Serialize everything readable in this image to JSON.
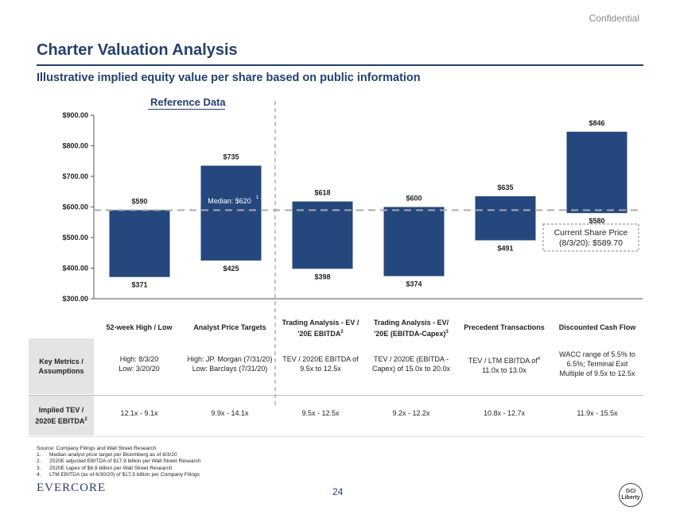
{
  "header": {
    "confidential": "Confidential",
    "title": "Charter Valuation Analysis",
    "subtitle": "Illustrative implied equity value per share based on public information",
    "reference_label": "Reference Data"
  },
  "chart_data": {
    "type": "floating_bar",
    "ylim": [
      300,
      900
    ],
    "yticks": [
      "$900.00",
      "$800.00",
      "$700.00",
      "$600.00",
      "$500.00",
      "$400.00",
      "$300.00"
    ],
    "ytick_values": [
      900,
      800,
      700,
      600,
      500,
      400,
      300
    ],
    "categories": [
      "52-week High / Low",
      "Analyst Price Targets",
      "Trading Analysis - EV / '20E EBITDA",
      "Trading Analysis - EV/ '20E (EBITDA-Capex)",
      "Precedent Transactions",
      "Discounted Cash Flow"
    ],
    "bars": [
      {
        "low": 371,
        "high": 590,
        "low_label": "$371",
        "high_label": "$590"
      },
      {
        "low": 425,
        "high": 735,
        "low_label": "$425",
        "high_label": "$735"
      },
      {
        "low": 398,
        "high": 618,
        "low_label": "$398",
        "high_label": "$618"
      },
      {
        "low": 374,
        "high": 600,
        "low_label": "$374",
        "high_label": "$600"
      },
      {
        "low": 491,
        "high": 635,
        "low_label": "$491",
        "high_label": "$635"
      },
      {
        "low": 580,
        "high": 846,
        "low_label": "$580",
        "high_label": "$846"
      }
    ],
    "median": {
      "value": 620,
      "label": "Median: $620",
      "footnote": "1",
      "bar_index": 1
    },
    "current_price": {
      "value": 589.7,
      "label_line1": "Current Share Price",
      "label_line2": "(8/3/20): $589.70"
    },
    "colors": {
      "bar": "#24477e",
      "reference_line": "#aaaaaa",
      "axis": "#555555"
    }
  },
  "table": {
    "columns": [
      {
        "title": "52-week High / Low",
        "sup": ""
      },
      {
        "title": "Analyst Price Targets",
        "sup": ""
      },
      {
        "title": "Trading Analysis - EV /",
        "title2": "'20E EBITDA",
        "sup": "2"
      },
      {
        "title": "Trading Analysis - EV/",
        "title2": "'20E (EBITDA-Capex)",
        "sup": "3"
      },
      {
        "title": "Precedent Transactions",
        "sup": ""
      },
      {
        "title": "Discounted Cash Flow",
        "sup": ""
      }
    ],
    "rows": [
      {
        "label": "Key Metrics / Assumptions",
        "cells": [
          [
            "High: 8/3/20",
            "Low: 3/20/20"
          ],
          [
            "High: JP. Morgan (7/31/20)",
            "Low: Barclays (7/31/20)"
          ],
          [
            "TEV / 2020E EBITDA of",
            "9.5x to 12.5x"
          ],
          [
            "TEV / 2020E (EBITDA -",
            "Capex) of 15.0x to 20.0x"
          ],
          [
            "TEV / LTM EBITDA of",
            "11.0x to 13.0x"
          ],
          [
            "WACC range of 5.5% to",
            "6.5%; Terminal Exit",
            "Multiple of 9.5x to 12.5x"
          ]
        ],
        "sup_precedent": "4"
      },
      {
        "label": "Implied TEV / 2020E EBITDA",
        "label_sup": "2",
        "cells": [
          "12.1x - 9.1x",
          "9.9x - 14.1x",
          "9.5x - 12.5x",
          "9.2x - 12.2x",
          "10.8x - 12.7x",
          "11.9x - 15.5x"
        ]
      }
    ]
  },
  "footnotes": {
    "source": "Source:  Company Filings and Wall Street Research",
    "items": [
      {
        "num": "1.",
        "text": "Median analyst price target per Bloomberg as of 8/3/20"
      },
      {
        "num": "2.",
        "text": "2020E adjusted EBITDA of $17.9 billion per Wall Street Research"
      },
      {
        "num": "3.",
        "text": "2020E capex of $6.9 billion per Wall Street Research"
      },
      {
        "num": "4.",
        "text": "LTM EBITDA (as of 6/30/20) of $17.5 billion per Company Filings"
      }
    ]
  },
  "footer": {
    "logo": "EVERCORE",
    "page_number": "24",
    "gci_logo_line1": "GCI",
    "gci_logo_line2": "Liberty"
  }
}
